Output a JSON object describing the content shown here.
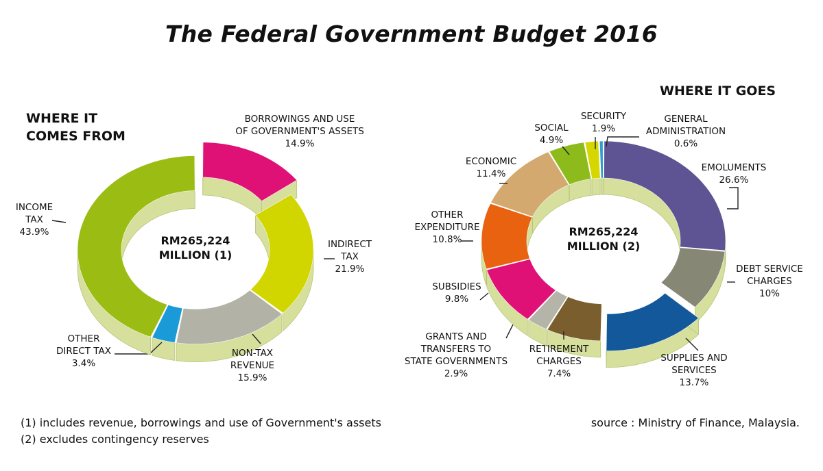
{
  "title": "The Federal Government Budget 2016",
  "colors": {
    "side": "#d6e09c",
    "side_edge": "#b8c47a",
    "leader": "#222222"
  },
  "chart_data": [
    {
      "type": "pie",
      "heading": [
        "WHERE IT",
        "COMES FROM"
      ],
      "center_text": [
        "RM265,224",
        "MILLION (1)"
      ],
      "total": "RM265,224 MILLION",
      "slices": [
        {
          "name": "borrowings",
          "label": [
            "BORROWINGS AND USE",
            "OF GOVERNMENT'S ASSETS",
            "14.9%"
          ],
          "value": 14.9,
          "color": "#df1177",
          "exploded": true
        },
        {
          "name": "indirect-tax",
          "label": [
            "INDIRECT",
            "TAX",
            "21.9%"
          ],
          "value": 21.9,
          "color": "#d2d600"
        },
        {
          "name": "non-tax-revenue",
          "label": [
            "NON-TAX",
            "REVENUE",
            "15.9%"
          ],
          "value": 15.9,
          "color": "#b2b2a6"
        },
        {
          "name": "other-direct-tax",
          "label": [
            "OTHER",
            "DIRECT TAX",
            "3.4%"
          ],
          "value": 3.4,
          "color": "#1a9ad6"
        },
        {
          "name": "income-tax",
          "label": [
            "INCOME",
            "TAX",
            "43.9%"
          ],
          "value": 43.9,
          "color": "#9bbd13"
        }
      ]
    },
    {
      "type": "pie",
      "heading": [
        "WHERE IT GOES"
      ],
      "center_text": [
        "RM265,224",
        "MILLION (2)"
      ],
      "total": "RM265,224 MILLION",
      "slices": [
        {
          "name": "emoluments",
          "label": [
            "EMOLUMENTS",
            "26.6%"
          ],
          "value": 26.6,
          "color": "#5e5494"
        },
        {
          "name": "debt-service",
          "label": [
            "DEBT SERVICE",
            "CHARGES",
            "10%"
          ],
          "value": 10,
          "color": "#868775"
        },
        {
          "name": "supplies-services",
          "label": [
            "SUPPLIES AND",
            "SERVICES",
            "13.7%"
          ],
          "value": 13.7,
          "color": "#12589a",
          "exploded": true
        },
        {
          "name": "retirement",
          "label": [
            "RETIREMENT",
            "CHARGES",
            "7.4%"
          ],
          "value": 7.4,
          "color": "#7b5e2e"
        },
        {
          "name": "grants",
          "label": [
            "GRANTS AND",
            "TRANSFERS TO",
            "STATE GOVERNMENTS",
            "2.9%"
          ],
          "value": 2.9,
          "color": "#b4b4a8"
        },
        {
          "name": "subsidies",
          "label": [
            "SUBSIDIES",
            "9.8%"
          ],
          "value": 9.8,
          "color": "#df1177"
        },
        {
          "name": "other-expenditure",
          "label": [
            "OTHER",
            "EXPENDITURE",
            "10.8%"
          ],
          "value": 10.8,
          "color": "#e8620f"
        },
        {
          "name": "economic",
          "label": [
            "ECONOMIC",
            "11.4%"
          ],
          "value": 11.4,
          "color": "#d4a970"
        },
        {
          "name": "social",
          "label": [
            "SOCIAL",
            "4.9%"
          ],
          "value": 4.9,
          "color": "#8dbb1c"
        },
        {
          "name": "security",
          "label": [
            "SECURITY",
            "1.9%"
          ],
          "value": 1.9,
          "color": "#d6d600"
        },
        {
          "name": "general-admin",
          "label": [
            "GENERAL",
            "ADMINISTRATION",
            "0.6%"
          ],
          "value": 0.6,
          "color": "#2b9fd4"
        }
      ]
    }
  ],
  "footnotes": [
    "(1) includes revenue, borrowings and use of Government's assets",
    "(2) excludes contingency reserves"
  ],
  "source": "source : Ministry of Finance, Malaysia."
}
